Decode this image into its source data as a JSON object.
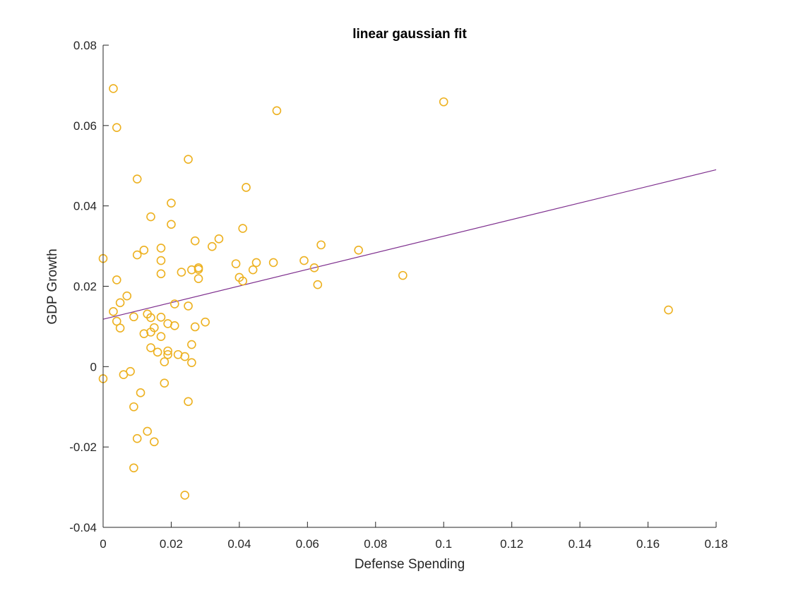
{
  "chart_data": {
    "type": "scatter",
    "title": "linear gaussian fit",
    "xlabel": "Defense Spending",
    "ylabel": "GDP Growth",
    "xlim": [
      0,
      0.18
    ],
    "ylim": [
      -0.04,
      0.08
    ],
    "xticks": [
      "0",
      "0.02",
      "0.04",
      "0.06",
      "0.08",
      "0.1",
      "0.12",
      "0.14",
      "0.16",
      "0.18"
    ],
    "yticks": [
      "-0.04",
      "-0.02",
      "0",
      "0.02",
      "0.04",
      "0.06",
      "0.08"
    ],
    "grid": false,
    "marker_color": "#EDB120",
    "line_color": "#7E2F8E",
    "points": [
      [
        0.003,
        0.0692
      ],
      [
        0.004,
        0.0595
      ],
      [
        0.051,
        0.0637
      ],
      [
        0.1,
        0.0659
      ],
      [
        0.025,
        0.0516
      ],
      [
        0.01,
        0.0467
      ],
      [
        0.042,
        0.0446
      ],
      [
        0.02,
        0.0407
      ],
      [
        0.014,
        0.0373
      ],
      [
        0.02,
        0.0354
      ],
      [
        0.041,
        0.0344
      ],
      [
        0.034,
        0.0318
      ],
      [
        0.027,
        0.0313
      ],
      [
        0.032,
        0.0299
      ],
      [
        0.064,
        0.0303
      ],
      [
        0.017,
        0.0295
      ],
      [
        0.012,
        0.029
      ],
      [
        0.075,
        0.029
      ],
      [
        0.01,
        0.0278
      ],
      [
        0.0,
        0.0269
      ],
      [
        0.017,
        0.0264
      ],
      [
        0.059,
        0.0264
      ],
      [
        0.039,
        0.0256
      ],
      [
        0.045,
        0.0259
      ],
      [
        0.05,
        0.0259
      ],
      [
        0.028,
        0.0246
      ],
      [
        0.062,
        0.0246
      ],
      [
        0.026,
        0.0241
      ],
      [
        0.028,
        0.0242
      ],
      [
        0.044,
        0.0241
      ],
      [
        0.023,
        0.0235
      ],
      [
        0.017,
        0.0231
      ],
      [
        0.088,
        0.0227
      ],
      [
        0.04,
        0.0222
      ],
      [
        0.028,
        0.0219
      ],
      [
        0.004,
        0.0216
      ],
      [
        0.041,
        0.0213
      ],
      [
        0.063,
        0.0204
      ],
      [
        0.007,
        0.0176
      ],
      [
        0.005,
        0.0159
      ],
      [
        0.021,
        0.0156
      ],
      [
        0.025,
        0.0151
      ],
      [
        0.003,
        0.0137
      ],
      [
        0.166,
        0.0141
      ],
      [
        0.013,
        0.0131
      ],
      [
        0.009,
        0.0124
      ],
      [
        0.014,
        0.0122
      ],
      [
        0.017,
        0.0123
      ],
      [
        0.004,
        0.0113
      ],
      [
        0.03,
        0.0111
      ],
      [
        0.019,
        0.0107
      ],
      [
        0.021,
        0.0102
      ],
      [
        0.027,
        0.0099
      ],
      [
        0.005,
        0.0096
      ],
      [
        0.015,
        0.0097
      ],
      [
        0.014,
        0.0086
      ],
      [
        0.012,
        0.0082
      ],
      [
        0.017,
        0.0075
      ],
      [
        0.026,
        0.0055
      ],
      [
        0.014,
        0.0047
      ],
      [
        0.019,
        0.0039
      ],
      [
        0.016,
        0.0036
      ],
      [
        0.019,
        0.003
      ],
      [
        0.022,
        0.003
      ],
      [
        0.024,
        0.0025
      ],
      [
        0.018,
        0.0012
      ],
      [
        0.026,
        0.001
      ],
      [
        0.008,
        -0.0012
      ],
      [
        0.006,
        -0.002
      ],
      [
        0.0,
        -0.003
      ],
      [
        0.018,
        -0.0041
      ],
      [
        0.011,
        -0.0065
      ],
      [
        0.025,
        -0.0087
      ],
      [
        0.009,
        -0.01
      ],
      [
        0.013,
        -0.0161
      ],
      [
        0.01,
        -0.0179
      ],
      [
        0.015,
        -0.0187
      ],
      [
        0.009,
        -0.0252
      ],
      [
        0.024,
        -0.032
      ]
    ],
    "fit_line": [
      [
        0,
        0.0118
      ],
      [
        0.18,
        0.049
      ]
    ]
  }
}
